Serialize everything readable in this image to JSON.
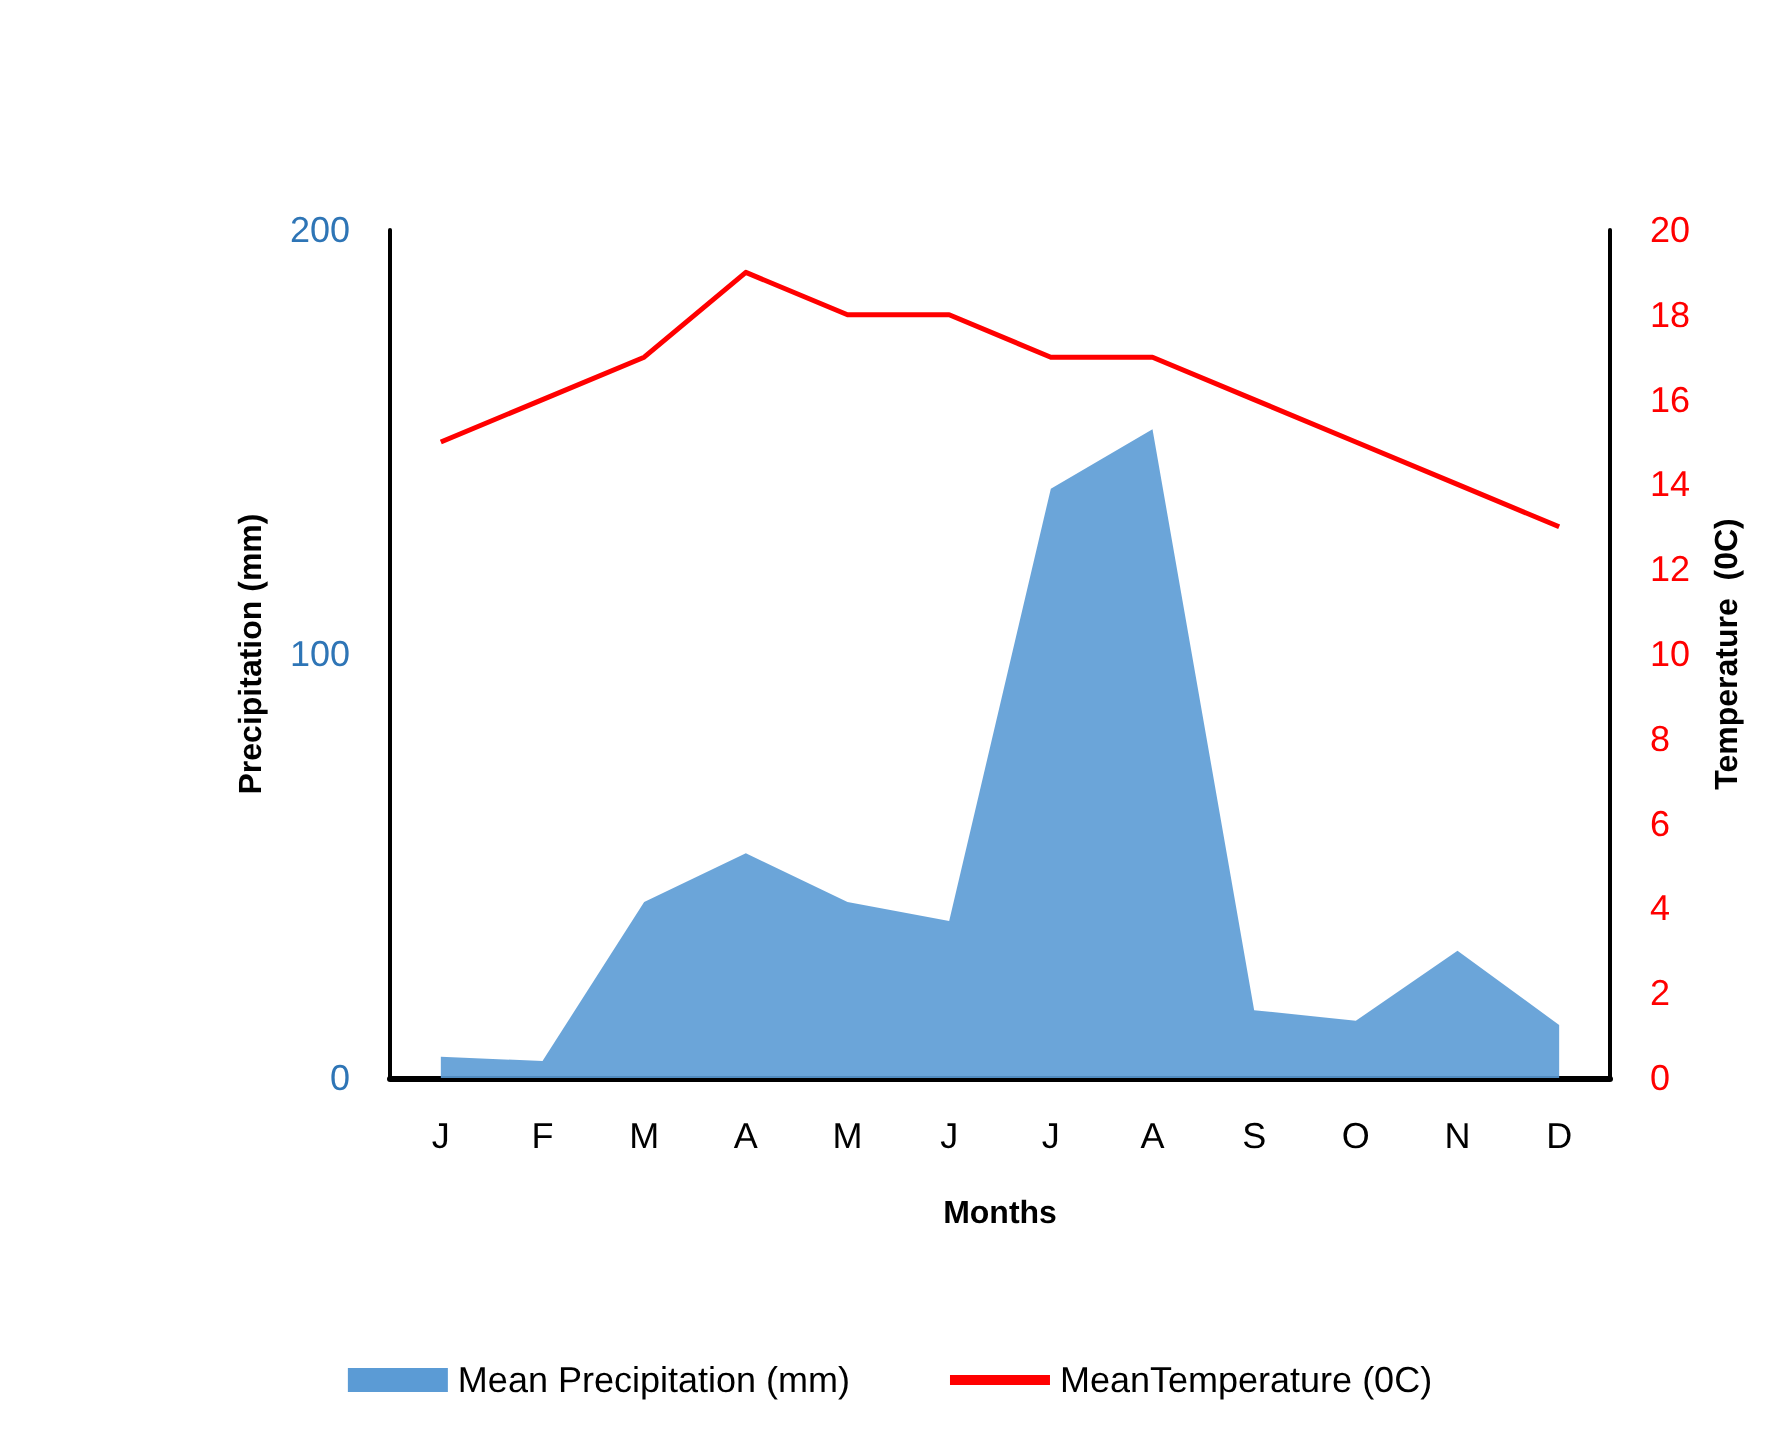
{
  "chart_data": {
    "type": "area",
    "xlabel": "Months",
    "ylabel": "Precipitation (mm)",
    "y2label": "Temperature  (0C)",
    "categories": [
      "J",
      "F",
      "M",
      "A",
      "M",
      "J",
      "J",
      "A",
      "S",
      "O",
      "N",
      "D"
    ],
    "series": [
      {
        "name": "Mean Precipitation (mm)",
        "color": "#5b9bd5",
        "values": [
          5,
          4,
          41.5,
          53,
          41.5,
          37,
          139,
          153,
          16,
          13.5,
          30,
          12.5
        ]
      },
      {
        "name": "MeanTemperature (0C)",
        "type": "line",
        "axis": "y2",
        "color": "#ff0000",
        "values": [
          15,
          16,
          17,
          19,
          18,
          18,
          17,
          17,
          16,
          15,
          14,
          13
        ]
      }
    ],
    "ylim": [
      0,
      200
    ],
    "yticks": [
      0,
      100,
      200
    ],
    "y2lim": [
      0,
      20
    ],
    "y2ticks": [
      0,
      2,
      4,
      6,
      8,
      10,
      12,
      14,
      16,
      18,
      20
    ],
    "grid": false,
    "legend": "bottom",
    "marker": "none"
  }
}
